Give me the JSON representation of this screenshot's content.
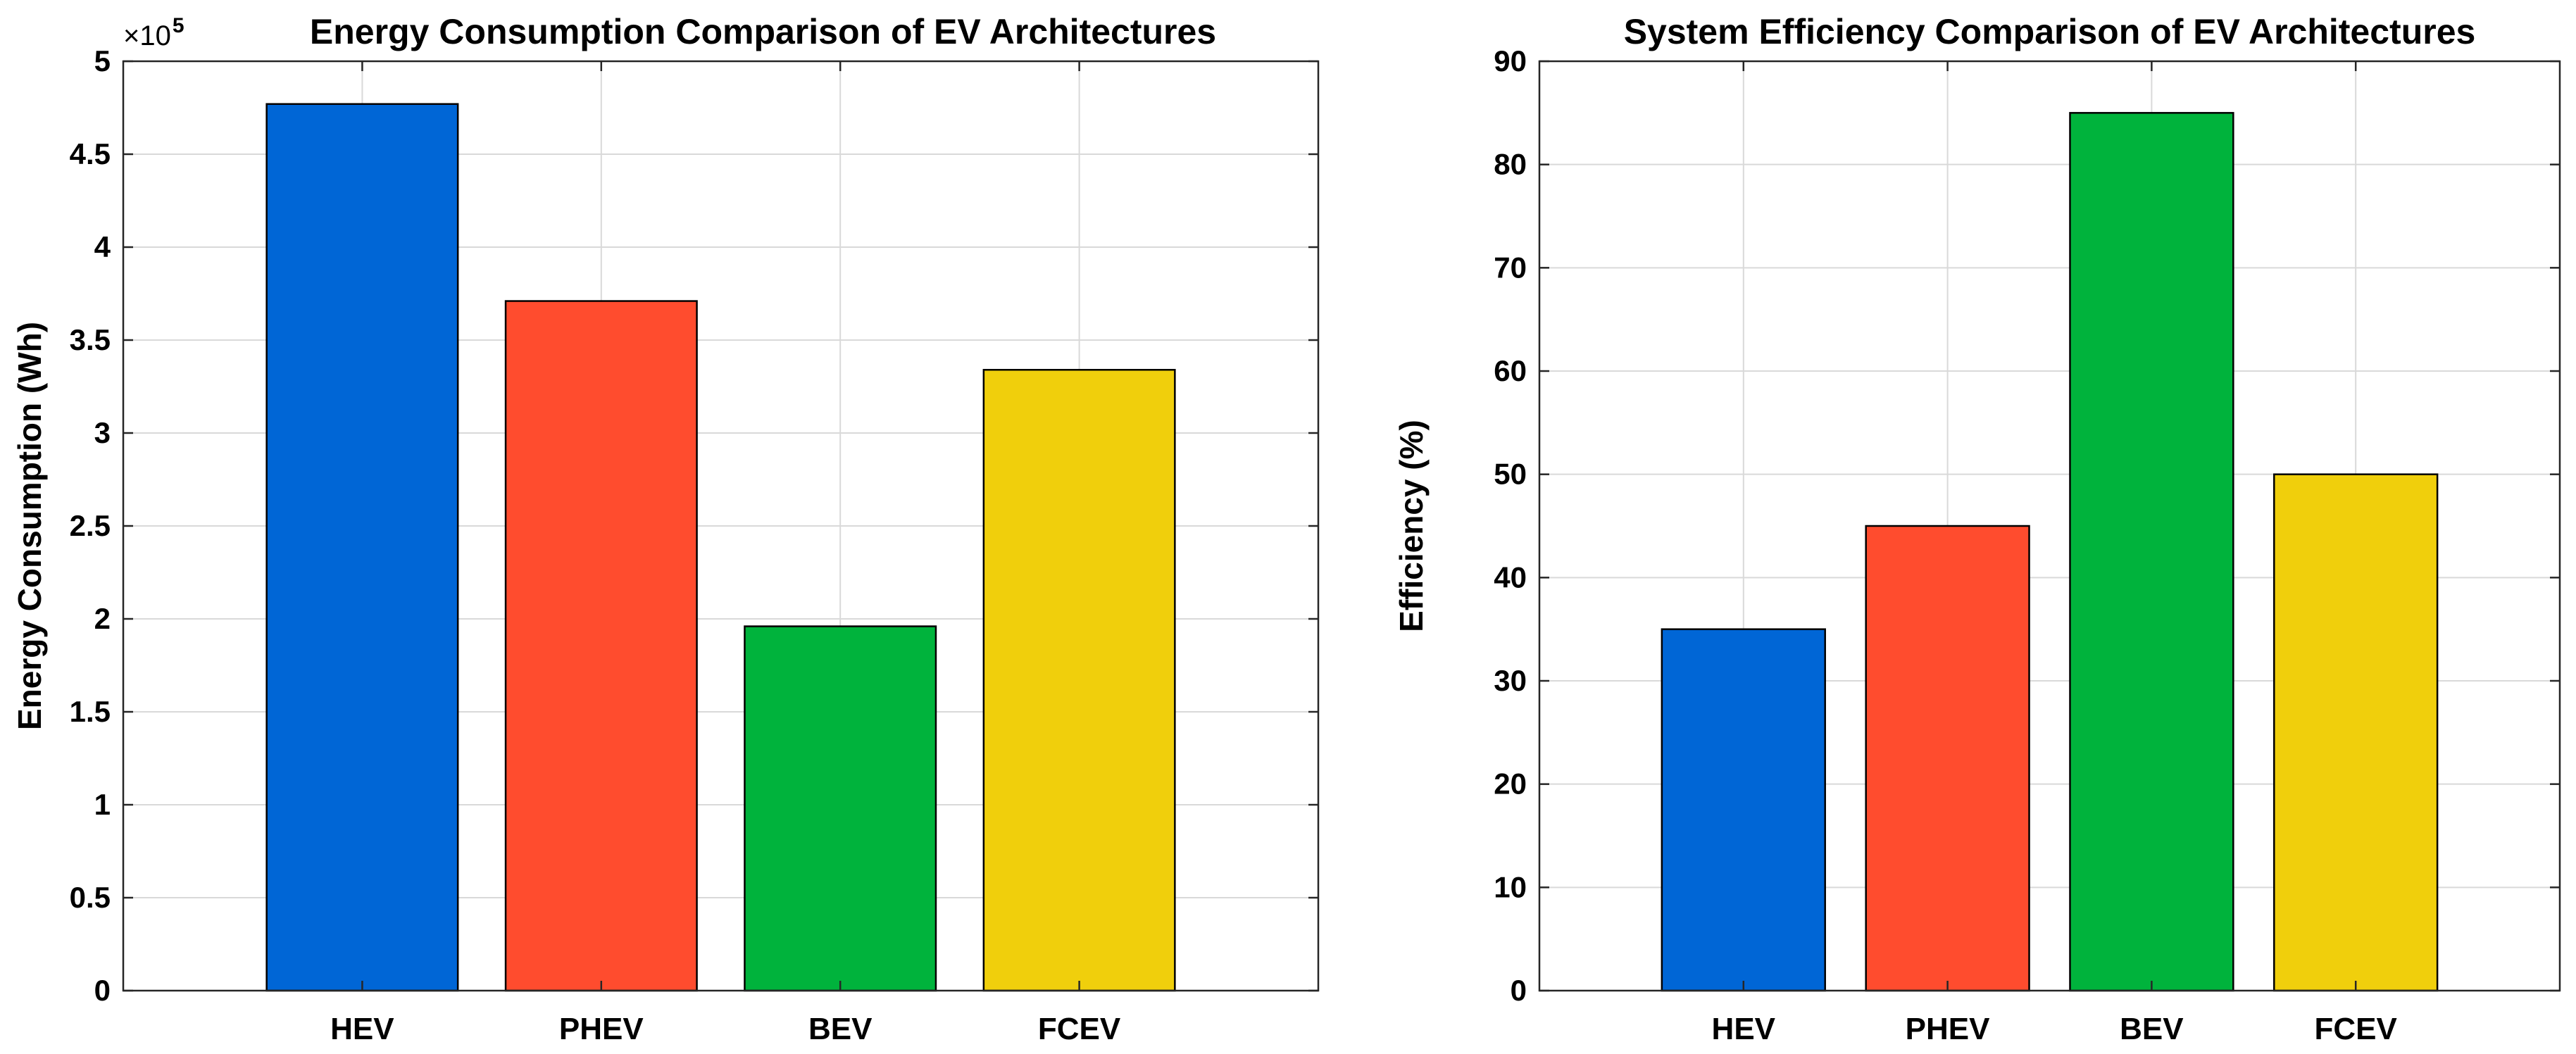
{
  "chart_data": [
    {
      "type": "bar",
      "title": "Energy Consumption Comparison of EV Architectures",
      "xlabel": "",
      "ylabel": "Energy Consumption (Wh)",
      "scale_prefix": "×10",
      "scale_exponent": "5",
      "categories": [
        "HEV",
        "PHEV",
        "BEV",
        "FCEV"
      ],
      "values": [
        477000,
        371000,
        196000,
        334000
      ],
      "bar_colors": [
        "#0066d6",
        "#ff4c2e",
        "#00b33c",
        "#f0cf0c"
      ],
      "xlim": [
        0,
        5
      ],
      "ylim": [
        0,
        500000
      ],
      "yticks": [
        0,
        50000,
        100000,
        150000,
        200000,
        250000,
        300000,
        350000,
        400000,
        450000,
        500000
      ],
      "ytick_labels": [
        "0",
        "0.5",
        "1",
        "1.5",
        "2",
        "2.5",
        "3",
        "3.5",
        "4",
        "4.5",
        "5"
      ],
      "grid": true,
      "legend": "none"
    },
    {
      "type": "bar",
      "title": "System Efficiency Comparison of EV Architectures",
      "xlabel": "",
      "ylabel": "Efficiency (%)",
      "categories": [
        "HEV",
        "PHEV",
        "BEV",
        "FCEV"
      ],
      "values": [
        35,
        45,
        85,
        50
      ],
      "bar_colors": [
        "#0066d6",
        "#ff4c2e",
        "#00b33c",
        "#f0cf0c"
      ],
      "xlim": [
        0,
        5
      ],
      "ylim": [
        0,
        90
      ],
      "yticks": [
        0,
        10,
        20,
        30,
        40,
        50,
        60,
        70,
        80,
        90
      ],
      "ytick_labels": [
        "0",
        "10",
        "20",
        "30",
        "40",
        "50",
        "60",
        "70",
        "80",
        "90"
      ],
      "grid": true,
      "legend": "none"
    }
  ]
}
